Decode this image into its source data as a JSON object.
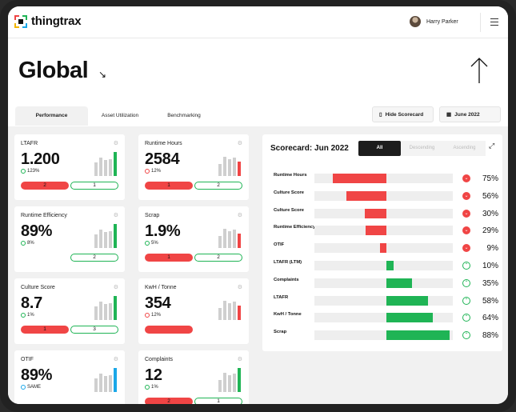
{
  "app": {
    "brand": "thingtrax",
    "user_name": "Harry Parker"
  },
  "page": {
    "title": "Global"
  },
  "tabs": [
    {
      "label": "Performance"
    },
    {
      "label": "Asset Utilization"
    },
    {
      "label": "Benchmarking"
    }
  ],
  "actions": {
    "hide_scorecard": "Hide Scorecard",
    "date": "June 2022"
  },
  "kpis": [
    {
      "label": "LTAFR",
      "value": "1.200",
      "change": "123%",
      "trend": "up",
      "bad": "2",
      "good": "1",
      "bars": [
        0.55,
        0.75,
        0.65,
        0.7,
        1.0
      ],
      "accent": "#1fb455"
    },
    {
      "label": "Runtime Hours",
      "value": "2584",
      "change": "12%",
      "trend": "down",
      "bad": "1",
      "good": "2",
      "bars": [
        0.5,
        0.8,
        0.7,
        0.75,
        0.6
      ],
      "accent": "#f04545"
    },
    {
      "label": "Runtime Efficiency",
      "value": "89%",
      "change": "8%",
      "trend": "up",
      "bad": "",
      "good": "2",
      "bars": [
        0.55,
        0.75,
        0.65,
        0.7,
        1.0
      ],
      "accent": "#1fb455"
    },
    {
      "label": "Scrap",
      "value": "1.9%",
      "change": "5%",
      "trend": "up",
      "bad": "1",
      "good": "2",
      "bars": [
        0.5,
        0.8,
        0.7,
        0.75,
        0.6
      ],
      "accent": "#f04545"
    },
    {
      "label": "Culture Score",
      "value": "8.7",
      "change": "1%",
      "trend": "up",
      "bad": "1",
      "good": "3",
      "bars": [
        0.55,
        0.75,
        0.65,
        0.7,
        1.0
      ],
      "accent": "#1fb455"
    },
    {
      "label": "KwH / Tonne",
      "value": "354",
      "change": "12%",
      "trend": "down",
      "bad": "",
      "good": "",
      "bars": [
        0.5,
        0.8,
        0.7,
        0.75,
        0.6
      ],
      "accent": "#f04545"
    },
    {
      "label": "OTIF",
      "value": "89%",
      "change": "SAME",
      "trend": "same",
      "bad": "",
      "good": "",
      "bars": [
        0.55,
        0.75,
        0.65,
        0.7,
        1.0
      ],
      "accent": "#1aa7e8"
    },
    {
      "label": "Complaints",
      "value": "12",
      "change": "1%",
      "trend": "up",
      "bad": "2",
      "good": "1",
      "bars": [
        0.5,
        0.8,
        0.7,
        0.75,
        1.0
      ],
      "accent": "#1fb455"
    }
  ],
  "scorecard": {
    "title": "Scorecard: Jun 2022",
    "filters": [
      "All",
      "Descending",
      "Ascending"
    ],
    "rows": [
      {
        "label": "Runtime Hours",
        "value": -75,
        "pct": "75%",
        "trend": "down"
      },
      {
        "label": "Culture Score",
        "value": -56,
        "pct": "56%",
        "trend": "down"
      },
      {
        "label": "Culture Score",
        "value": -30,
        "pct": "30%",
        "trend": "down"
      },
      {
        "label": "Runtime Efficiency",
        "value": -29,
        "pct": "29%",
        "trend": "down"
      },
      {
        "label": "OTIF",
        "value": -9,
        "pct": "9%",
        "trend": "down"
      },
      {
        "label": "LTAFR (LTM)",
        "value": 10,
        "pct": "10%",
        "trend": "up"
      },
      {
        "label": "Complaints",
        "value": 35,
        "pct": "35%",
        "trend": "up"
      },
      {
        "label": "LTAFR",
        "value": 58,
        "pct": "58%",
        "trend": "up"
      },
      {
        "label": "KwH / Tonne",
        "value": 64,
        "pct": "64%",
        "trend": "up"
      },
      {
        "label": "Scrap",
        "value": 88,
        "pct": "88%",
        "trend": "up"
      }
    ]
  },
  "colors": {
    "red": "#f04545",
    "green": "#1fb455",
    "blue": "#1aa7e8",
    "dark": "#1d1d1d"
  },
  "icons": [
    "logo-icon",
    "avatar-icon",
    "hamburger-icon",
    "arrow-down-right-icon",
    "arrow-up-icon",
    "document-icon",
    "calendar-icon",
    "gear-icon",
    "expand-icon",
    "trend-up-icon",
    "trend-down-icon"
  ]
}
